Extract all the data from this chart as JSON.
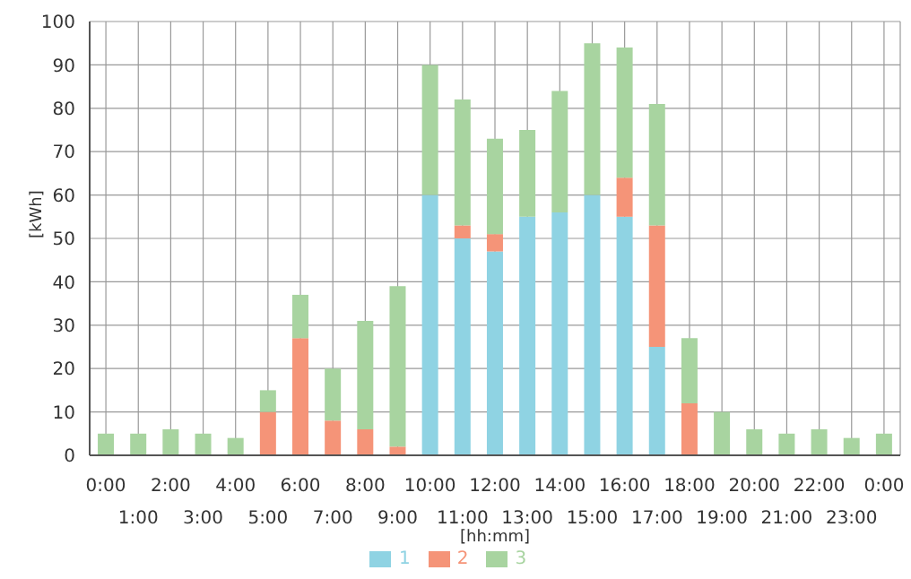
{
  "chart_data": {
    "type": "bar",
    "stacked": true,
    "xlabel": "[hh:mm]",
    "ylabel": "[kWh]",
    "categories": [
      "0:00",
      "1:00",
      "2:00",
      "3:00",
      "4:00",
      "5:00",
      "6:00",
      "7:00",
      "8:00",
      "9:00",
      "10:00",
      "11:00",
      "12:00",
      "13:00",
      "14:00",
      "15:00",
      "16:00",
      "17:00",
      "18:00",
      "19:00",
      "20:00",
      "21:00",
      "22:00",
      "23:00",
      "0:00"
    ],
    "series": [
      {
        "name": "1",
        "color": "#8fd3e3",
        "values": [
          0,
          0,
          0,
          0,
          0,
          0,
          0,
          0,
          0,
          0,
          60,
          50,
          47,
          55,
          56,
          60,
          55,
          25,
          0,
          0,
          0,
          0,
          0,
          0,
          0
        ]
      },
      {
        "name": "2",
        "color": "#f59478",
        "values": [
          0,
          0,
          0,
          0,
          0,
          10,
          27,
          8,
          6,
          2,
          0,
          3,
          4,
          0,
          0,
          0,
          9,
          28,
          12,
          0,
          0,
          0,
          0,
          0,
          0
        ]
      },
      {
        "name": "3",
        "color": "#a8d4a0",
        "values": [
          5,
          5,
          6,
          5,
          4,
          5,
          10,
          12,
          25,
          37,
          30,
          29,
          22,
          20,
          28,
          35,
          30,
          28,
          15,
          10,
          6,
          5,
          6,
          4,
          5
        ]
      }
    ],
    "ylim": [
      0,
      100
    ],
    "yticks": [
      0,
      10,
      20,
      30,
      40,
      50,
      60,
      70,
      80,
      90,
      100
    ],
    "grid": true,
    "legend": "bottom"
  }
}
